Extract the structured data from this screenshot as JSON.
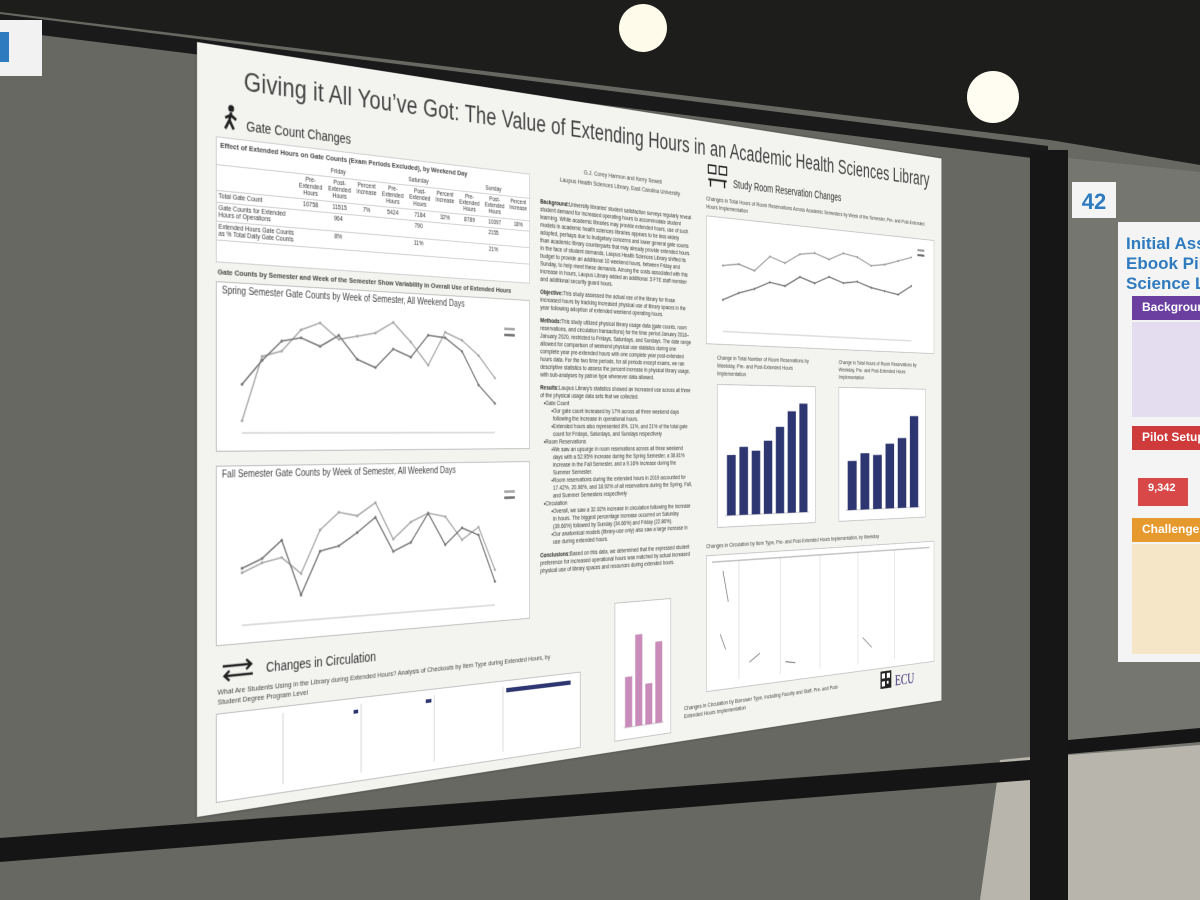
{
  "board": {
    "poster_number": "42"
  },
  "poster": {
    "title": "Giving it All You’ve Got: The Value of Extending Hours in an Academic Health Sciences Library",
    "authors": "G.J. Corey Harmon and Kerry Sewell",
    "affiliation": "Laupus Health Sciences Library, East Carolina University",
    "gate_section": {
      "heading": "Gate Count Changes",
      "table": {
        "title": "Effect of Extended Hours on Gate Counts (Exam Periods Excluded), by Weekend Day",
        "days": [
          "Friday",
          "Saturday",
          "Sunday"
        ],
        "columns": [
          "Pre-Extended Hours",
          "Post-Extended Hours",
          "Percent Increase"
        ],
        "row_labels": [
          "Total Gate Count",
          "Gate Counts for Extended Hours of Operations",
          "Extended Hours Gate Counts as % Total Daily Gate Counts"
        ],
        "rows": [
          [
            10758,
            11515,
            "7%",
            5424,
            7184,
            "32%",
            8789,
            10397,
            "18%"
          ],
          [
            964,
            790,
            2155
          ],
          [
            "8%",
            "11%",
            "21%"
          ]
        ]
      },
      "charts_heading": "Gate Counts by Semester and Week of the Semester Show Variability in Overall Use of Extended Hours"
    },
    "spring_chart": {
      "type": "line",
      "title": "Spring Semester Gate Counts by Week of Semester, All Weekend Days",
      "ylim": [
        0,
        3000
      ],
      "series": [
        {
          "color": "#a8a8a8",
          "values": [
            300,
            1900,
            2050,
            2600,
            2800,
            2400,
            2500,
            2600,
            2900,
            2400,
            1800,
            2700,
            2500,
            2100,
            1500
          ]
        },
        {
          "color": "#777777",
          "values": [
            1200,
            1800,
            2300,
            2400,
            2200,
            2500,
            1900,
            1700,
            2200,
            2000,
            2600,
            2550,
            2200,
            1300,
            800
          ]
        }
      ]
    },
    "fall_chart": {
      "type": "line",
      "title": "Fall Semester Gate Counts by Week of Semester, All Weekend Days",
      "ylim": [
        0,
        3000
      ],
      "series": [
        {
          "color": "#a8a8a8",
          "values": [
            1200,
            1400,
            1500,
            1100,
            2100,
            2500,
            2400,
            2700,
            1800,
            2200,
            2400,
            2300,
            1700,
            2000,
            900
          ]
        },
        {
          "color": "#777777",
          "values": [
            1300,
            1500,
            1900,
            600,
            1600,
            1700,
            2000,
            2350,
            1500,
            1700,
            2400,
            1600,
            2000,
            1800,
            600
          ]
        }
      ]
    },
    "circ_section": {
      "heading": "Changes in Circulation",
      "subtitle": "What Are Students Using in the Library during Extended Hours? Analysis of Checkouts by Item Type during Extended Hours, by Student Degree Program Level"
    },
    "middle": {
      "sections": [
        {
          "heading": "Background:",
          "text": "University libraries’ student satisfaction surveys regularly reveal student demand for increased operating hours to accommodate student learning. While academic libraries may provide extended hours, use of such models in academic health sciences libraries appears to be less widely adopted, perhaps due to budgetary concerns and lower general gate counts than academic library counterparts that may already provide extended hours. In the face of student demands, Laupus Health Sciences Library shifted its budget to provide an additional 10 weekend hours, between Friday and Sunday, to help meet these demands. Among the costs associated with this increase in hours, Laupus Library added an additional .5 FTE staff member and additional security guard hours."
        },
        {
          "heading": "Objective:",
          "text": "This study assessed the actual use of the library for those increased hours by tracking increased physical use of library spaces in the year following adoption of extended weekend operating hours."
        },
        {
          "heading": "Methods:",
          "text": "This study utilized physical library usage data (gate counts, room reservations, and circulation transactions) for the time period January 2018–January 2020, restricted to Fridays, Saturdays, and Sundays. The date range allowed for comparison of weekend physical use statistics during one complete year pre-extended hours with one complete year post-extended hours data. For the two time periods, for all periods except exams, we ran descriptive statistics to assess the percent increase in physical library usage, with sub-analyses by patron type whenever data allowed."
        },
        {
          "heading": "Results:",
          "text": "Laupus Library’s statistics showed an increased use across all three of the physical usage data sets that we collected.",
          "items": [
            {
              "label": "Gate Count",
              "points": [
                "Our gate count increased by 17% across all three weekend days following the increase in operational hours.",
                "Extended hours also represented 8%, 11%, and 21% of the total gate count for Fridays, Saturdays, and Sundays respectively"
              ]
            },
            {
              "label": "Room Reservations",
              "points": [
                "We saw an upsurge in room reservations across all three weekend days with a 52.95% increase during the Spring Semester, a 38.81% increase in the Fall Semester, and a 9.16% increase during the Summer Semester.",
                "Room reservations during the extended hours in 2019 accounted for 17.42%, 20.98%, and 18.92% of all reservations during the Spring, Fall, and Summer Semesters respectively"
              ]
            },
            {
              "label": "Circulation",
              "points": [
                "Overall, we saw a 32.92% increase in circulation following the increase in hours. The biggest percentage increase occurred on Saturday (39.66%) followed by Sunday (34.66%) and Friday (22.86%).",
                "Our anatomical models (library-use only) also saw a large increase in use during extended hours."
              ]
            }
          ]
        },
        {
          "heading": "Conclusions:",
          "text": "Based on this data, we determined that the expressed student preference for increased operational hours was matched by actual increased physical use of library spaces and resources during extended hours."
        }
      ]
    },
    "pink_chart": {
      "type": "bar",
      "color": "#c98bb9",
      "ylim": [
        0,
        50
      ],
      "values": [
        22,
        40,
        18,
        36
      ]
    },
    "room_section": {
      "heading": "Study Room Reservation Changes"
    },
    "room_line_chart": {
      "type": "line",
      "title": "Changes in Total Hours of Room Reservations Across Academic Semesters by Week of the Semester, Pre- and Post-Extended Hours Implementation",
      "ylim": [
        0,
        400
      ],
      "series": [
        {
          "color": "#9a9a9a",
          "values": [
            250,
            260,
            240,
            300,
            280,
            320,
            330,
            310,
            340,
            330,
            300,
            310,
            330,
            350
          ]
        },
        {
          "color": "#6e6e6e",
          "values": [
            120,
            150,
            170,
            200,
            190,
            230,
            210,
            240,
            220,
            230,
            210,
            200,
            190,
            230
          ]
        }
      ]
    },
    "room_bar_count": {
      "type": "bar",
      "title": "Change in Total Number of Room Reservations by Weekday, Pre- and Post-Extended Hours Implementation",
      "color": "#2d3670",
      "ylim": [
        0,
        60
      ],
      "values": [
        30,
        34,
        32,
        37,
        44,
        52,
        56
      ]
    },
    "room_bar_hours": {
      "type": "bar",
      "title": "Change in Total Hours of Room Reservations by Weekday, Pre- and Post-Extended Hours Implementation",
      "color": "#2d3670",
      "ylim": [
        0,
        60
      ],
      "values": [
        26,
        30,
        29,
        35,
        38,
        50
      ]
    },
    "circ_item_caption": "Changes in Circulation by Item Type, Pre- and Post-Extended Hours Implementation, by Weekday",
    "circ_borrower_caption": "Changes in Circulation by Borrower Type, Including Faculty and Staff, Pre- and Post-Extended Hours Implementation",
    "logo": "ECU"
  },
  "neighbor_poster": {
    "title_lines": [
      "Initial Asse",
      "Ebook Pilo",
      "Science Li"
    ],
    "sections": [
      "Background",
      "Pilot Setup",
      "Challenges"
    ],
    "stat": "9,342"
  }
}
